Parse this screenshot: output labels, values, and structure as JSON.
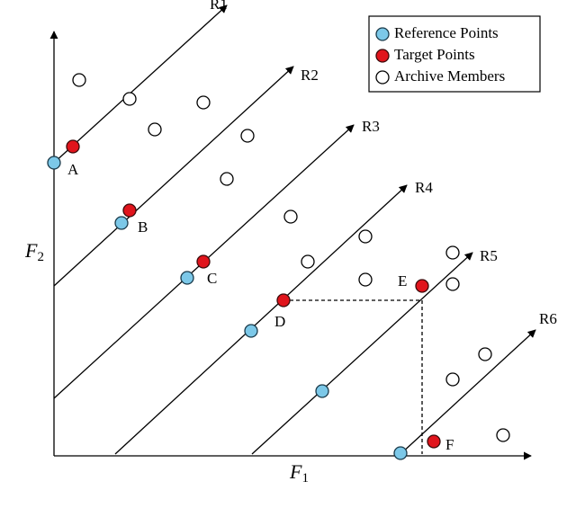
{
  "ray_labels": [
    "R1",
    "R2",
    "R3",
    "R4",
    "R5",
    "R6"
  ],
  "point_labels": [
    "A",
    "B",
    "C",
    "D",
    "E",
    "F"
  ],
  "axis_labels": {
    "y": {
      "symbol": "F",
      "subscript": "2"
    },
    "x": {
      "symbol": "F",
      "subscript": "1"
    }
  },
  "legend": [
    "Reference Points",
    "Target Points",
    "Archive Members"
  ]
}
